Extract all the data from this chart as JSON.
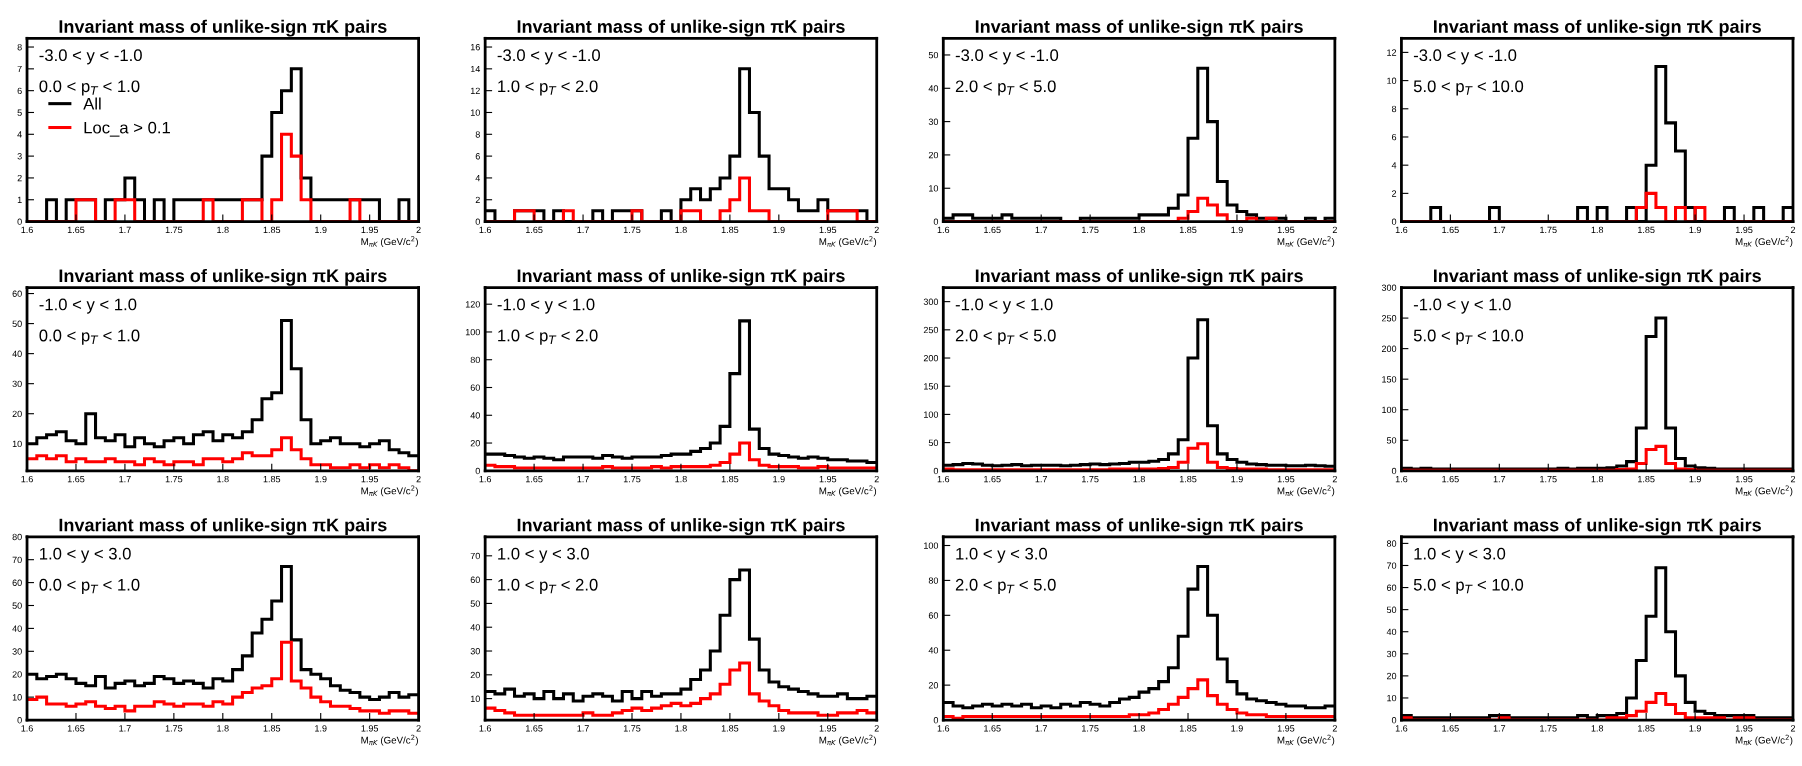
{
  "chart_data": [
    {
      "type": "histogram",
      "title": "Invariant mass of unlike-sign πK pairs",
      "xlabel": "M$_{πK}$ (GeV/c$^{2}$)",
      "annotations": [
        "-3.0 < y < -1.0",
        "0.0 < p$_{T}$ < 1.0"
      ],
      "legend": "left",
      "grid": false,
      "bins": [
        1.6,
        1.61,
        1.62,
        1.63,
        1.64,
        1.65,
        1.66,
        1.67,
        1.68,
        1.69,
        1.7,
        1.71,
        1.72,
        1.73,
        1.74,
        1.75,
        1.76,
        1.77,
        1.78,
        1.79,
        1.8,
        1.81,
        1.82,
        1.83,
        1.84,
        1.85,
        1.86,
        1.87,
        1.88,
        1.89,
        1.9,
        1.91,
        1.92,
        1.93,
        1.94,
        1.95,
        1.96,
        1.97,
        1.98,
        1.99,
        2
      ],
      "xlim": [
        1.6,
        2
      ],
      "xticks": [
        1.6,
        1.65,
        1.7,
        1.75,
        1.8,
        1.85,
        1.9,
        1.95,
        2
      ],
      "ylim": [
        0,
        8.4
      ],
      "yticks": [
        0,
        1,
        2,
        3,
        4,
        5,
        6,
        7,
        8
      ],
      "series": [
        {
          "name": "All",
          "color": "#000000",
          "values": [
            0,
            0,
            1,
            0,
            1,
            1,
            1,
            0,
            1,
            1,
            2,
            1,
            0,
            1,
            0,
            1,
            1,
            1,
            1,
            1,
            1,
            1,
            1,
            1,
            3,
            5,
            6,
            7,
            2,
            1,
            1,
            1,
            1,
            1,
            1,
            1,
            0,
            0,
            1,
            0
          ]
        },
        {
          "name": "Loc_a > 0.1",
          "color": "#ff0000",
          "values": [
            0,
            0,
            0,
            0,
            0,
            1,
            1,
            0,
            0,
            1,
            1,
            0,
            0,
            0,
            0,
            0,
            0,
            0,
            1,
            0,
            0,
            0,
            1,
            1,
            0,
            1,
            4,
            3,
            1,
            0,
            0,
            0,
            0,
            1,
            0,
            0,
            0,
            0,
            0,
            0
          ]
        }
      ]
    },
    {
      "type": "histogram",
      "title": "Invariant mass of unlike-sign πK pairs",
      "xlabel": "M$_{πK}$ (GeV/c$^{2}$)",
      "annotations": [
        "-3.0 < y < -1.0",
        "1.0 < p$_{T}$ < 2.0"
      ],
      "grid": false,
      "bins": [
        1.6,
        1.61,
        1.62,
        1.63,
        1.64,
        1.65,
        1.66,
        1.67,
        1.68,
        1.69,
        1.7,
        1.71,
        1.72,
        1.73,
        1.74,
        1.75,
        1.76,
        1.77,
        1.78,
        1.79,
        1.8,
        1.81,
        1.82,
        1.83,
        1.84,
        1.85,
        1.86,
        1.87,
        1.88,
        1.89,
        1.9,
        1.91,
        1.92,
        1.93,
        1.94,
        1.95,
        1.96,
        1.97,
        1.98,
        1.99,
        2
      ],
      "xlim": [
        1.6,
        2
      ],
      "xticks": [
        1.6,
        1.65,
        1.7,
        1.75,
        1.8,
        1.85,
        1.9,
        1.95,
        2
      ],
      "ylim": [
        0,
        16.8
      ],
      "yticks": [
        0,
        2,
        4,
        6,
        8,
        10,
        12,
        14,
        16
      ],
      "series": [
        {
          "color": "#000000",
          "values": [
            1,
            0,
            0,
            1,
            1,
            1,
            0,
            1,
            0,
            0,
            0,
            1,
            0,
            1,
            1,
            1,
            0,
            0,
            1,
            0,
            2,
            3,
            2,
            3,
            4,
            6,
            14,
            10,
            6,
            3,
            3,
            2,
            1,
            1,
            2,
            1,
            1,
            1,
            1,
            0
          ]
        },
        {
          "color": "#ff0000",
          "values": [
            0,
            0,
            0,
            1,
            1,
            0,
            0,
            0,
            1,
            0,
            0,
            0,
            0,
            0,
            0,
            1,
            0,
            0,
            0,
            0,
            1,
            1,
            0,
            0,
            1,
            2,
            4,
            1,
            1,
            0,
            0,
            0,
            0,
            0,
            0,
            1,
            1,
            1,
            0,
            0
          ]
        }
      ]
    },
    {
      "type": "histogram",
      "title": "Invariant mass of unlike-sign πK pairs",
      "xlabel": "M$_{πK}$ (GeV/c$^{2}$)",
      "annotations": [
        "-3.0 < y < -1.0",
        "2.0 < p$_{T}$ < 5.0"
      ],
      "grid": false,
      "bins": [
        1.6,
        1.61,
        1.62,
        1.63,
        1.64,
        1.65,
        1.66,
        1.67,
        1.68,
        1.69,
        1.7,
        1.71,
        1.72,
        1.73,
        1.74,
        1.75,
        1.76,
        1.77,
        1.78,
        1.79,
        1.8,
        1.81,
        1.82,
        1.83,
        1.84,
        1.85,
        1.86,
        1.87,
        1.88,
        1.89,
        1.9,
        1.91,
        1.92,
        1.93,
        1.94,
        1.95,
        1.96,
        1.97,
        1.98,
        1.99,
        2
      ],
      "xlim": [
        1.6,
        2
      ],
      "xticks": [
        1.6,
        1.65,
        1.7,
        1.75,
        1.8,
        1.85,
        1.9,
        1.95,
        2
      ],
      "ylim": [
        0,
        55
      ],
      "yticks": [
        0,
        10,
        20,
        30,
        40,
        50
      ],
      "series": [
        {
          "color": "#000000",
          "values": [
            1,
            2,
            2,
            1,
            1,
            1,
            2,
            1,
            1,
            1,
            1,
            1,
            0,
            0,
            1,
            1,
            1,
            1,
            1,
            1,
            2,
            2,
            2,
            4,
            8,
            25,
            46,
            30,
            12,
            5,
            3,
            2,
            1,
            1,
            1,
            0,
            0,
            1,
            0,
            1
          ]
        },
        {
          "color": "#ff0000",
          "values": [
            0,
            0,
            0,
            0,
            0,
            0,
            0,
            0,
            0,
            0,
            0,
            0,
            0,
            0,
            0,
            0,
            0,
            0,
            0,
            0,
            0,
            0,
            0,
            0,
            1,
            3,
            7,
            5,
            2,
            0,
            0,
            1,
            0,
            1,
            0,
            0,
            0,
            0,
            0,
            0
          ]
        }
      ]
    },
    {
      "type": "histogram",
      "title": "Invariant mass of unlike-sign πK pairs",
      "xlabel": "M$_{πK}$ (GeV/c$^{2}$)",
      "annotations": [
        "-3.0 < y < -1.0",
        "5.0 < p$_{T}$ < 10.0"
      ],
      "grid": false,
      "bins": [
        1.6,
        1.61,
        1.62,
        1.63,
        1.64,
        1.65,
        1.66,
        1.67,
        1.68,
        1.69,
        1.7,
        1.71,
        1.72,
        1.73,
        1.74,
        1.75,
        1.76,
        1.77,
        1.78,
        1.79,
        1.8,
        1.81,
        1.82,
        1.83,
        1.84,
        1.85,
        1.86,
        1.87,
        1.88,
        1.89,
        1.9,
        1.91,
        1.92,
        1.93,
        1.94,
        1.95,
        1.96,
        1.97,
        1.98,
        1.99,
        2
      ],
      "xlim": [
        1.6,
        2
      ],
      "xticks": [
        1.6,
        1.65,
        1.7,
        1.75,
        1.8,
        1.85,
        1.9,
        1.95,
        2
      ],
      "ylim": [
        0,
        13
      ],
      "yticks": [
        0,
        2,
        4,
        6,
        8,
        10,
        12
      ],
      "series": [
        {
          "color": "#000000",
          "values": [
            0,
            0,
            0,
            1,
            0,
            0,
            0,
            0,
            0,
            1,
            0,
            0,
            0,
            0,
            0,
            0,
            0,
            0,
            1,
            0,
            1,
            0,
            0,
            1,
            0,
            4,
            11,
            7,
            5,
            1,
            0,
            0,
            0,
            1,
            0,
            0,
            1,
            0,
            0,
            1
          ]
        },
        {
          "color": "#ff0000",
          "values": [
            0,
            0,
            0,
            0,
            0,
            0,
            0,
            0,
            0,
            0,
            0,
            0,
            0,
            0,
            0,
            0,
            0,
            0,
            0,
            0,
            0,
            0,
            0,
            0,
            1,
            2,
            1,
            0,
            1,
            0,
            1,
            0,
            0,
            0,
            0,
            0,
            0,
            0,
            0,
            0
          ]
        }
      ]
    },
    {
      "type": "histogram",
      "title": "Invariant mass of unlike-sign πK pairs",
      "xlabel": "M$_{πK}$ (GeV/c$^{2}$)",
      "annotations": [
        "-1.0 < y < 1.0",
        "0.0 < p$_{T}$ < 1.0"
      ],
      "grid": false,
      "bins": [
        1.6,
        1.61,
        1.62,
        1.63,
        1.64,
        1.65,
        1.66,
        1.67,
        1.68,
        1.69,
        1.7,
        1.71,
        1.72,
        1.73,
        1.74,
        1.75,
        1.76,
        1.77,
        1.78,
        1.79,
        1.8,
        1.81,
        1.82,
        1.83,
        1.84,
        1.85,
        1.86,
        1.87,
        1.88,
        1.89,
        1.9,
        1.91,
        1.92,
        1.93,
        1.94,
        1.95,
        1.96,
        1.97,
        1.98,
        1.99,
        2
      ],
      "xlim": [
        1.6,
        2
      ],
      "xticks": [
        1.6,
        1.65,
        1.7,
        1.75,
        1.8,
        1.85,
        1.9,
        1.95,
        2
      ],
      "ylim": [
        1,
        62
      ],
      "yticks": [
        10,
        20,
        30,
        40,
        50,
        60
      ],
      "series": [
        {
          "color": "#000000",
          "values": [
            10,
            12,
            13,
            14,
            11,
            10,
            20,
            12,
            11,
            13,
            9,
            12,
            10,
            9,
            11,
            12,
            10,
            13,
            14,
            11,
            13,
            12,
            14,
            18,
            25,
            27,
            51,
            35,
            18,
            10,
            11,
            12,
            10,
            10,
            9,
            10,
            11,
            8,
            7,
            6
          ]
        },
        {
          "color": "#ff0000",
          "values": [
            5,
            6,
            5,
            6,
            4,
            5,
            4,
            4,
            5,
            4,
            4,
            3,
            5,
            4,
            3,
            4,
            4,
            3,
            5,
            5,
            4,
            5,
            7,
            6,
            6,
            8,
            12,
            8,
            5,
            3,
            3,
            2,
            2,
            3,
            2,
            3,
            2,
            3,
            2,
            1
          ]
        }
      ]
    },
    {
      "type": "histogram",
      "title": "Invariant mass of unlike-sign πK pairs",
      "xlabel": "M$_{πK}$ (GeV/c$^{2}$)",
      "annotations": [
        "-1.0 < y < 1.0",
        "1.0 < p$_{T}$ < 2.0"
      ],
      "grid": false,
      "bins": [
        1.6,
        1.61,
        1.62,
        1.63,
        1.64,
        1.65,
        1.66,
        1.67,
        1.68,
        1.69,
        1.7,
        1.71,
        1.72,
        1.73,
        1.74,
        1.75,
        1.76,
        1.77,
        1.78,
        1.79,
        1.8,
        1.81,
        1.82,
        1.83,
        1.84,
        1.85,
        1.86,
        1.87,
        1.88,
        1.89,
        1.9,
        1.91,
        1.92,
        1.93,
        1.94,
        1.95,
        1.96,
        1.97,
        1.98,
        1.99,
        2
      ],
      "xlim": [
        1.6,
        2
      ],
      "xticks": [
        1.6,
        1.65,
        1.7,
        1.75,
        1.8,
        1.85,
        1.9,
        1.95,
        2
      ],
      "ylim": [
        0,
        132
      ],
      "yticks": [
        0,
        20,
        40,
        60,
        80,
        100,
        120
      ],
      "series": [
        {
          "color": "#000000",
          "values": [
            12,
            12,
            11,
            10,
            9,
            10,
            9,
            8,
            10,
            10,
            10,
            9,
            11,
            10,
            9,
            10,
            10,
            10,
            11,
            12,
            12,
            14,
            16,
            20,
            32,
            70,
            108,
            30,
            16,
            12,
            11,
            10,
            9,
            10,
            9,
            8,
            8,
            7,
            7,
            6
          ]
        },
        {
          "color": "#ff0000",
          "values": [
            4,
            3,
            3,
            2,
            2,
            2,
            2,
            2,
            2,
            2,
            2,
            2,
            3,
            2,
            2,
            2,
            2,
            3,
            2,
            3,
            3,
            3,
            3,
            4,
            6,
            12,
            20,
            8,
            4,
            3,
            3,
            3,
            2,
            2,
            3,
            2,
            2,
            2,
            2,
            2
          ]
        }
      ]
    },
    {
      "type": "histogram",
      "title": "Invariant mass of unlike-sign πK pairs",
      "xlabel": "M$_{πK}$ (GeV/c$^{2}$)",
      "annotations": [
        "-1.0 < y < 1.0",
        "2.0 < p$_{T}$ < 5.0"
      ],
      "grid": false,
      "bins": [
        1.6,
        1.61,
        1.62,
        1.63,
        1.64,
        1.65,
        1.66,
        1.67,
        1.68,
        1.69,
        1.7,
        1.71,
        1.72,
        1.73,
        1.74,
        1.75,
        1.76,
        1.77,
        1.78,
        1.79,
        1.8,
        1.81,
        1.82,
        1.83,
        1.84,
        1.85,
        1.86,
        1.87,
        1.88,
        1.89,
        1.9,
        1.91,
        1.92,
        1.93,
        1.94,
        1.95,
        1.96,
        1.97,
        1.98,
        1.99,
        2
      ],
      "xlim": [
        1.6,
        2
      ],
      "xticks": [
        1.6,
        1.65,
        1.7,
        1.75,
        1.8,
        1.85,
        1.9,
        1.95,
        2
      ],
      "ylim": [
        0,
        325
      ],
      "yticks": [
        0,
        50,
        100,
        150,
        200,
        250,
        300
      ],
      "series": [
        {
          "color": "#000000",
          "values": [
            10,
            11,
            13,
            12,
            10,
            9,
            10,
            11,
            9,
            10,
            10,
            10,
            9,
            10,
            11,
            12,
            11,
            12,
            13,
            15,
            15,
            17,
            20,
            30,
            55,
            200,
            268,
            80,
            30,
            20,
            15,
            12,
            11,
            10,
            10,
            9,
            9,
            10,
            9,
            8
          ]
        },
        {
          "color": "#ff0000",
          "values": [
            3,
            2,
            2,
            2,
            2,
            2,
            2,
            2,
            2,
            2,
            2,
            2,
            2,
            2,
            2,
            2,
            2,
            3,
            3,
            3,
            3,
            3,
            4,
            6,
            15,
            40,
            48,
            15,
            6,
            4,
            3,
            3,
            3,
            2,
            2,
            2,
            2,
            2,
            2,
            2
          ]
        }
      ]
    },
    {
      "type": "histogram",
      "title": "Invariant mass of unlike-sign πK pairs",
      "xlabel": "M$_{πK}$ (GeV/c$^{2}$)",
      "annotations": [
        "-1.0 < y < 1.0",
        "5.0 < p$_{T}$ < 10.0"
      ],
      "grid": false,
      "bins": [
        1.6,
        1.61,
        1.62,
        1.63,
        1.64,
        1.65,
        1.66,
        1.67,
        1.68,
        1.69,
        1.7,
        1.71,
        1.72,
        1.73,
        1.74,
        1.75,
        1.76,
        1.77,
        1.78,
        1.79,
        1.8,
        1.81,
        1.82,
        1.83,
        1.84,
        1.85,
        1.86,
        1.87,
        1.88,
        1.89,
        1.9,
        1.91,
        1.92,
        1.93,
        1.94,
        1.95,
        1.96,
        1.97,
        1.98,
        1.99,
        2
      ],
      "xlim": [
        1.6,
        2
      ],
      "xticks": [
        1.6,
        1.65,
        1.7,
        1.75,
        1.8,
        1.85,
        1.9,
        1.95,
        2
      ],
      "ylim": [
        0,
        300
      ],
      "yticks": [
        0,
        50,
        100,
        150,
        200,
        250,
        300
      ],
      "series": [
        {
          "color": "#000000",
          "values": [
            4,
            3,
            4,
            3,
            3,
            3,
            3,
            3,
            3,
            3,
            3,
            3,
            3,
            3,
            3,
            3,
            4,
            3,
            4,
            4,
            4,
            5,
            8,
            15,
            70,
            220,
            250,
            70,
            20,
            8,
            5,
            4,
            3,
            3,
            3,
            3,
            3,
            3,
            3,
            3
          ]
        },
        {
          "color": "#ff0000",
          "values": [
            1,
            1,
            1,
            1,
            1,
            1,
            1,
            1,
            1,
            1,
            1,
            1,
            1,
            1,
            1,
            1,
            1,
            1,
            1,
            1,
            1,
            1,
            2,
            3,
            12,
            35,
            40,
            12,
            3,
            2,
            1,
            1,
            1,
            1,
            1,
            1,
            1,
            1,
            1,
            1
          ]
        }
      ]
    },
    {
      "type": "histogram",
      "title": "Invariant mass of unlike-sign πK pairs",
      "xlabel": "M$_{πK}$ (GeV/c$^{2}$)",
      "annotations": [
        "1.0 < y < 3.0",
        "0.0 < p$_{T}$ < 1.0"
      ],
      "grid": false,
      "bins": [
        1.6,
        1.61,
        1.62,
        1.63,
        1.64,
        1.65,
        1.66,
        1.67,
        1.68,
        1.69,
        1.7,
        1.71,
        1.72,
        1.73,
        1.74,
        1.75,
        1.76,
        1.77,
        1.78,
        1.79,
        1.8,
        1.81,
        1.82,
        1.83,
        1.84,
        1.85,
        1.86,
        1.87,
        1.88,
        1.89,
        1.9,
        1.91,
        1.92,
        1.93,
        1.94,
        1.95,
        1.96,
        1.97,
        1.98,
        1.99,
        2
      ],
      "xlim": [
        1.6,
        2
      ],
      "xticks": [
        1.6,
        1.65,
        1.7,
        1.75,
        1.8,
        1.85,
        1.9,
        1.95,
        2
      ],
      "ylim": [
        0,
        80
      ],
      "yticks": [
        0,
        10,
        20,
        30,
        40,
        50,
        60,
        70,
        80
      ],
      "series": [
        {
          "color": "#000000",
          "values": [
            20,
            18,
            19,
            20,
            18,
            16,
            15,
            19,
            14,
            16,
            17,
            15,
            16,
            19,
            18,
            16,
            17,
            16,
            14,
            18,
            17,
            22,
            28,
            38,
            44,
            52,
            67,
            35,
            22,
            20,
            18,
            15,
            13,
            12,
            10,
            9,
            10,
            12,
            10,
            11
          ]
        },
        {
          "color": "#ff0000",
          "values": [
            9,
            10,
            7,
            7,
            6,
            7,
            8,
            6,
            5,
            6,
            4,
            6,
            6,
            8,
            7,
            6,
            7,
            7,
            6,
            8,
            7,
            10,
            12,
            14,
            15,
            18,
            34,
            17,
            14,
            10,
            8,
            6,
            6,
            5,
            4,
            4,
            3,
            4,
            4,
            3
          ]
        }
      ]
    },
    {
      "type": "histogram",
      "title": "Invariant mass of unlike-sign πK pairs",
      "xlabel": "M$_{πK}$ (GeV/c$^{2}$)",
      "annotations": [
        "1.0 < y < 3.0",
        "1.0 < p$_{T}$ < 2.0"
      ],
      "grid": false,
      "bins": [
        1.6,
        1.61,
        1.62,
        1.63,
        1.64,
        1.65,
        1.66,
        1.67,
        1.68,
        1.69,
        1.7,
        1.71,
        1.72,
        1.73,
        1.74,
        1.75,
        1.76,
        1.77,
        1.78,
        1.79,
        1.8,
        1.81,
        1.82,
        1.83,
        1.84,
        1.85,
        1.86,
        1.87,
        1.88,
        1.89,
        1.9,
        1.91,
        1.92,
        1.93,
        1.94,
        1.95,
        1.96,
        1.97,
        1.98,
        1.99,
        2
      ],
      "xlim": [
        1.6,
        2
      ],
      "xticks": [
        1.6,
        1.65,
        1.7,
        1.75,
        1.8,
        1.85,
        1.9,
        1.95,
        2
      ],
      "ylim": [
        1,
        78
      ],
      "yticks": [
        10,
        20,
        30,
        40,
        50,
        60,
        70
      ],
      "series": [
        {
          "color": "#000000",
          "values": [
            13,
            12,
            14,
            11,
            12,
            10,
            13,
            10,
            12,
            9,
            11,
            12,
            11,
            9,
            13,
            10,
            13,
            11,
            12,
            12,
            14,
            18,
            22,
            30,
            45,
            60,
            64,
            35,
            22,
            17,
            15,
            14,
            13,
            12,
            11,
            11,
            12,
            10,
            10,
            11
          ]
        },
        {
          "color": "#ff0000",
          "values": [
            6,
            5,
            4,
            3,
            3,
            3,
            3,
            3,
            3,
            3,
            4,
            3,
            3,
            4,
            5,
            6,
            5,
            6,
            7,
            8,
            7,
            8,
            10,
            12,
            16,
            22,
            25,
            12,
            9,
            7,
            5,
            4,
            4,
            4,
            3,
            3,
            4,
            4,
            5,
            4
          ]
        }
      ]
    },
    {
      "type": "histogram",
      "title": "Invariant mass of unlike-sign πK pairs",
      "xlabel": "M$_{πK}$ (GeV/c$^{2}$)",
      "annotations": [
        "1.0 < y < 3.0",
        "2.0 < p$_{T}$ < 5.0"
      ],
      "grid": false,
      "bins": [
        1.6,
        1.61,
        1.62,
        1.63,
        1.64,
        1.65,
        1.66,
        1.67,
        1.68,
        1.69,
        1.7,
        1.71,
        1.72,
        1.73,
        1.74,
        1.75,
        1.76,
        1.77,
        1.78,
        1.79,
        1.8,
        1.81,
        1.82,
        1.83,
        1.84,
        1.85,
        1.86,
        1.87,
        1.88,
        1.89,
        1.9,
        1.91,
        1.92,
        1.93,
        1.94,
        1.95,
        1.96,
        1.97,
        1.98,
        1.99,
        2
      ],
      "xlim": [
        1.6,
        2
      ],
      "xticks": [
        1.6,
        1.65,
        1.7,
        1.75,
        1.8,
        1.85,
        1.9,
        1.95,
        2
      ],
      "ylim": [
        0,
        105
      ],
      "yticks": [
        0,
        20,
        40,
        60,
        80,
        100
      ],
      "series": [
        {
          "color": "#000000",
          "values": [
            10,
            8,
            7,
            8,
            9,
            8,
            9,
            8,
            9,
            7,
            8,
            7,
            9,
            8,
            10,
            9,
            8,
            10,
            12,
            13,
            16,
            18,
            22,
            30,
            48,
            75,
            88,
            60,
            35,
            22,
            15,
            12,
            11,
            10,
            9,
            8,
            8,
            7,
            7,
            8
          ]
        },
        {
          "color": "#ff0000",
          "values": [
            2,
            1,
            2,
            2,
            2,
            2,
            2,
            2,
            2,
            2,
            2,
            2,
            2,
            2,
            2,
            2,
            2,
            2,
            2,
            3,
            3,
            4,
            6,
            9,
            13,
            18,
            23,
            14,
            9,
            6,
            4,
            3,
            3,
            2,
            2,
            2,
            2,
            2,
            2,
            2
          ]
        }
      ]
    },
    {
      "type": "histogram",
      "title": "Invariant mass of unlike-sign πK pairs",
      "xlabel": "M$_{πK}$ (GeV/c$^{2}$)",
      "annotations": [
        "1.0 < y < 3.0",
        "5.0 < p$_{T}$ < 10.0"
      ],
      "grid": false,
      "bins": [
        1.6,
        1.61,
        1.62,
        1.63,
        1.64,
        1.65,
        1.66,
        1.67,
        1.68,
        1.69,
        1.7,
        1.71,
        1.72,
        1.73,
        1.74,
        1.75,
        1.76,
        1.77,
        1.78,
        1.79,
        1.8,
        1.81,
        1.82,
        1.83,
        1.84,
        1.85,
        1.86,
        1.87,
        1.88,
        1.89,
        1.9,
        1.91,
        1.92,
        1.93,
        1.94,
        1.95,
        1.96,
        1.97,
        1.98,
        1.99,
        2
      ],
      "xlim": [
        1.6,
        2
      ],
      "xticks": [
        1.6,
        1.65,
        1.7,
        1.75,
        1.8,
        1.85,
        1.9,
        1.95,
        2
      ],
      "ylim": [
        0,
        83
      ],
      "yticks": [
        0,
        10,
        20,
        30,
        40,
        50,
        60,
        70,
        80
      ],
      "series": [
        {
          "color": "#000000",
          "values": [
            2,
            1,
            1,
            1,
            1,
            1,
            1,
            1,
            1,
            2,
            2,
            1,
            1,
            1,
            1,
            1,
            1,
            1,
            2,
            1,
            2,
            2,
            3,
            10,
            27,
            47,
            69,
            40,
            20,
            8,
            4,
            3,
            2,
            2,
            2,
            2,
            1,
            1,
            1,
            1
          ]
        },
        {
          "color": "#ff0000",
          "values": [
            1,
            0,
            0,
            0,
            0,
            0,
            0,
            0,
            0,
            0,
            1,
            0,
            0,
            0,
            0,
            0,
            0,
            0,
            0,
            0,
            0,
            1,
            1,
            2,
            4,
            8,
            12,
            7,
            3,
            1,
            1,
            1,
            1,
            0,
            1,
            1,
            0,
            0,
            0,
            0
          ]
        }
      ]
    }
  ]
}
